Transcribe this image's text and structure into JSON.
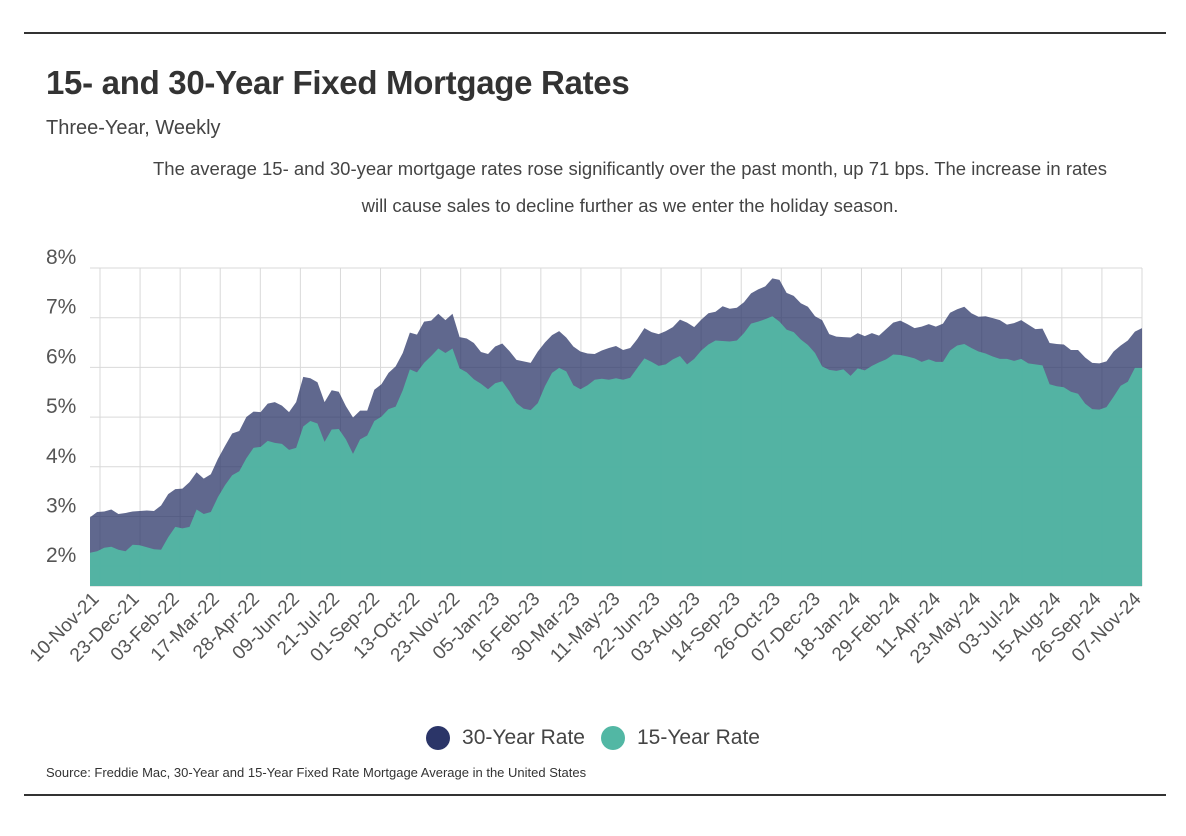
{
  "title": "15- and 30-Year Fixed Mortgage Rates",
  "subtitle": "Three-Year, Weekly",
  "description": "The average 15- and 30-year mortgage rates rose significantly over the past month, up 71 bps. The increase in rates will cause sales to decline further as we enter the holiday season.",
  "source": "Source:  Freddie Mac, 30-Year  and 15-Year Fixed Rate Mortgage Average in the United States",
  "colors": {
    "rate30": "#2b3568",
    "rate15": "#52b7a4",
    "grid": "#d9d9d9"
  },
  "chart_data": {
    "type": "area",
    "x_ticks": [
      "10-Nov-21",
      "23-Dec-21",
      "03-Feb-22",
      "17-Mar-22",
      "28-Apr-22",
      "09-Jun-22",
      "21-Jul-22",
      "01-Sep-22",
      "13-Oct-22",
      "23-Nov-22",
      "05-Jan-23",
      "16-Feb-23",
      "30-Mar-23",
      "11-May-23",
      "22-Jun-23",
      "03-Aug-23",
      "14-Sep-23",
      "26-Oct-23",
      "07-Dec-23",
      "18-Jan-24",
      "29-Feb-24",
      "11-Apr-24",
      "23-May-24",
      "03-Jul-24",
      "15-Aug-24",
      "26-Sep-24",
      "07-Nov-24"
    ],
    "y_ticks": [
      "2%",
      "3%",
      "4%",
      "5%",
      "6%",
      "7%",
      "8%"
    ],
    "ylim": [
      1.6,
      8
    ],
    "grid": true,
    "legend_position": "bottom",
    "series": [
      {
        "name": "30-Year Rate",
        "values": [
          2.98,
          3.09,
          3.1,
          3.14,
          3.05,
          3.07,
          3.1,
          3.11,
          3.12,
          3.11,
          3.22,
          3.45,
          3.55,
          3.56,
          3.69,
          3.89,
          3.76,
          3.85,
          4.16,
          4.42,
          4.67,
          4.72,
          5.0,
          5.11,
          5.1,
          5.27,
          5.3,
          5.23,
          5.1,
          5.3,
          5.81,
          5.78,
          5.7,
          5.3,
          5.54,
          5.51,
          5.22,
          4.99,
          5.13,
          5.13,
          5.55,
          5.66,
          5.89,
          6.02,
          6.29,
          6.7,
          6.66,
          6.92,
          6.94,
          7.08,
          6.95,
          7.08,
          6.61,
          6.58,
          6.49,
          6.31,
          6.27,
          6.42,
          6.48,
          6.33,
          6.15,
          6.12,
          6.09,
          6.32,
          6.5,
          6.65,
          6.73,
          6.6,
          6.42,
          6.32,
          6.28,
          6.27,
          6.34,
          6.39,
          6.43,
          6.35,
          6.39,
          6.57,
          6.79,
          6.71,
          6.67,
          6.73,
          6.81,
          6.96,
          6.9,
          6.81,
          6.96,
          7.09,
          7.12,
          7.23,
          7.18,
          7.2,
          7.31,
          7.49,
          7.57,
          7.63,
          7.79,
          7.76,
          7.5,
          7.44,
          7.29,
          7.22,
          7.03,
          6.95,
          6.67,
          6.62,
          6.61,
          6.6,
          6.69,
          6.63,
          6.69,
          6.64,
          6.77,
          6.9,
          6.94,
          6.87,
          6.79,
          6.82,
          6.87,
          6.82,
          6.88,
          7.1,
          7.17,
          7.22,
          7.09,
          7.02,
          7.03,
          6.99,
          6.95,
          6.86,
          6.89,
          6.95,
          6.86,
          6.77,
          6.78,
          6.49,
          6.47,
          6.46,
          6.35,
          6.35,
          6.2,
          6.09,
          6.08,
          6.12,
          6.32,
          6.44,
          6.54,
          6.72,
          6.79
        ]
      },
      {
        "name": "15-Year Rate",
        "values": [
          2.27,
          2.3,
          2.37,
          2.39,
          2.33,
          2.3,
          2.43,
          2.42,
          2.38,
          2.34,
          2.33,
          2.58,
          2.79,
          2.76,
          2.79,
          3.14,
          3.05,
          3.09,
          3.39,
          3.63,
          3.83,
          3.91,
          4.17,
          4.38,
          4.4,
          4.52,
          4.48,
          4.46,
          4.34,
          4.38,
          4.81,
          4.92,
          4.87,
          4.5,
          4.75,
          4.76,
          4.55,
          4.26,
          4.55,
          4.63,
          4.92,
          5.01,
          5.16,
          5.21,
          5.54,
          5.96,
          5.9,
          6.09,
          6.23,
          6.38,
          6.29,
          6.38,
          5.98,
          5.9,
          5.76,
          5.67,
          5.56,
          5.68,
          5.72,
          5.52,
          5.28,
          5.17,
          5.14,
          5.28,
          5.62,
          5.89,
          5.99,
          5.92,
          5.64,
          5.56,
          5.64,
          5.75,
          5.77,
          5.75,
          5.78,
          5.75,
          5.79,
          5.99,
          6.18,
          6.11,
          6.03,
          6.06,
          6.16,
          6.23,
          6.06,
          6.17,
          6.34,
          6.46,
          6.54,
          6.53,
          6.52,
          6.54,
          6.69,
          6.88,
          6.92,
          6.97,
          7.03,
          6.92,
          6.76,
          6.71,
          6.56,
          6.45,
          6.29,
          6.02,
          5.95,
          5.93,
          5.96,
          5.83,
          5.98,
          5.94,
          6.03,
          6.1,
          6.16,
          6.26,
          6.25,
          6.22,
          6.18,
          6.11,
          6.16,
          6.11,
          6.11,
          6.34,
          6.44,
          6.47,
          6.39,
          6.32,
          6.28,
          6.22,
          6.17,
          6.17,
          6.13,
          6.17,
          6.08,
          6.06,
          6.04,
          5.66,
          5.62,
          5.6,
          5.51,
          5.47,
          5.27,
          5.16,
          5.15,
          5.2,
          5.41,
          5.63,
          5.71,
          5.99,
          5.99
        ]
      }
    ]
  }
}
